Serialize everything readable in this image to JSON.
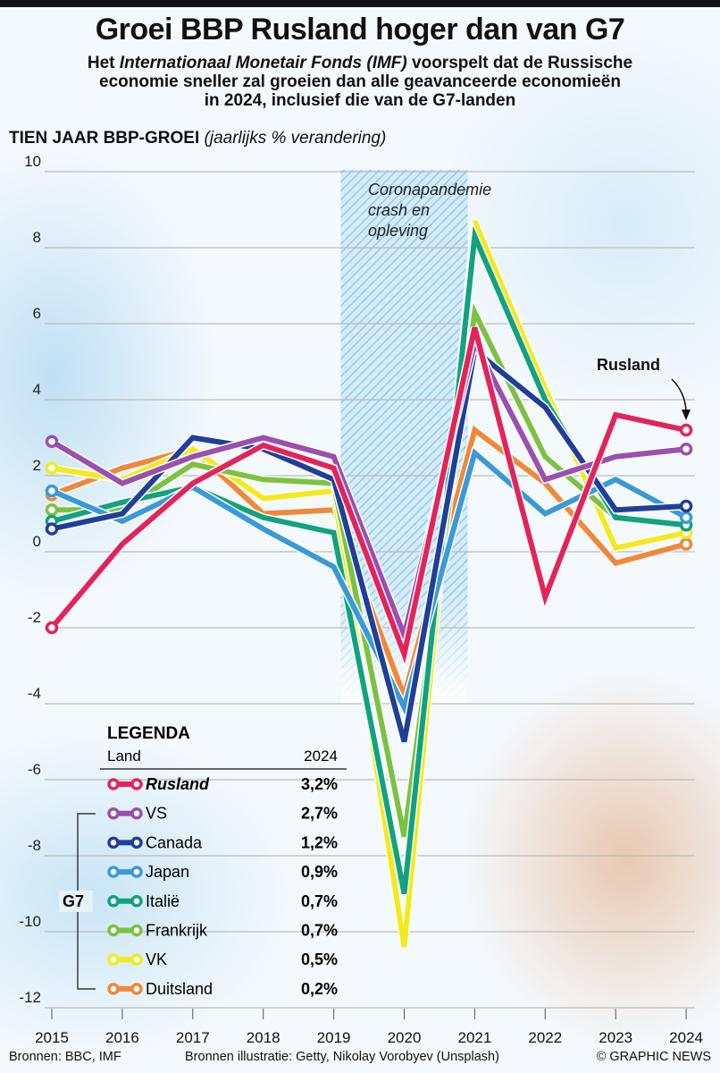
{
  "title": "Groei BBP Rusland hoger dan van G7",
  "subtitle": {
    "pre": "Het ",
    "italic": "Internationaal Monetair Fonds (IMF)",
    "line1_post": " voorspelt dat de Russische",
    "line2": "economie sneller zal groeien dan alle geavanceerde economieën",
    "line3": "in 2024, inclusief die van de G7-landen"
  },
  "chart_heading": {
    "bold": "TIEN JAAR BBP-GROEI",
    "italic": "(jaarlijks % verandering)"
  },
  "chart_data": {
    "type": "line",
    "title": "TIEN JAAR BBP-GROEI (jaarlijks % verandering)",
    "x": [
      2015,
      2016,
      2017,
      2018,
      2019,
      2020,
      2021,
      2022,
      2023,
      2024
    ],
    "x_labels": [
      "2015",
      "2016",
      "2017",
      "2018",
      "2019",
      "2020",
      "2021",
      "2022",
      "2023",
      "2024"
    ],
    "ylim": [
      -12,
      10
    ],
    "y_ticks": [
      "10",
      "8",
      "6",
      "4",
      "2",
      "0",
      "-2",
      "-4",
      "-6",
      "-8",
      "-10",
      "-12"
    ],
    "y_tick_values": [
      10,
      8,
      6,
      4,
      2,
      0,
      -2,
      -4,
      -6,
      -8,
      -10,
      -12
    ],
    "grid": true,
    "annotation": {
      "lines": [
        "Coronapandemie",
        "crash en",
        "opleving"
      ],
      "span": [
        2019.1,
        2020.9
      ]
    },
    "series_label": "Rusland",
    "series": [
      {
        "name": "Duitsland",
        "color": "#f0883a",
        "values": [
          1.5,
          2.2,
          2.7,
          1.0,
          1.1,
          -3.8,
          3.2,
          1.8,
          -0.3,
          0.2
        ],
        "label_2024": "0,2%"
      },
      {
        "name": "VK",
        "color": "#f2ea1f",
        "values": [
          2.2,
          1.9,
          2.7,
          1.4,
          1.6,
          -10.4,
          8.7,
          4.3,
          0.1,
          0.5
        ],
        "label_2024": "0,5%"
      },
      {
        "name": "Frankrijk",
        "color": "#7cc242",
        "values": [
          1.1,
          1.1,
          2.3,
          1.9,
          1.8,
          -7.5,
          6.3,
          2.5,
          0.9,
          0.7
        ],
        "label_2024": "0,7%"
      },
      {
        "name": "Italië",
        "color": "#11a37f",
        "values": [
          0.8,
          1.3,
          1.7,
          0.9,
          0.5,
          -9.0,
          8.3,
          4.0,
          0.9,
          0.7
        ],
        "label_2024": "0,7%"
      },
      {
        "name": "Japan",
        "color": "#3a9ad9",
        "values": [
          1.6,
          0.8,
          1.7,
          0.6,
          -0.4,
          -4.1,
          2.6,
          1.0,
          1.9,
          0.9
        ],
        "label_2024": "0,9%"
      },
      {
        "name": "Canada",
        "color": "#1f3f99",
        "values": [
          0.6,
          1.0,
          3.0,
          2.7,
          1.9,
          -5.0,
          5.3,
          3.8,
          1.1,
          1.2
        ],
        "label_2024": "1,2%"
      },
      {
        "name": "VS",
        "color": "#9b4fb0",
        "values": [
          2.9,
          1.8,
          2.5,
          3.0,
          2.5,
          -2.2,
          5.5,
          1.9,
          2.5,
          2.7
        ],
        "label_2024": "2,7%"
      },
      {
        "name": "Rusland",
        "color": "#e3245a",
        "values": [
          -2.0,
          0.2,
          1.8,
          2.8,
          2.2,
          -2.7,
          5.9,
          -1.2,
          3.6,
          3.2
        ],
        "label_2024": "3,2%"
      }
    ]
  },
  "legend": {
    "title": "LEGENDA",
    "col_land": "Land",
    "col_year": "2024",
    "group": "G7",
    "order": [
      "Rusland",
      "VS",
      "Canada",
      "Japan",
      "Italië",
      "Frankrijk",
      "VK",
      "Duitsland"
    ]
  },
  "footer": {
    "sources": "Bronnen: BBC, IMF",
    "illustration": "Bronnen illustratie: Getty, Nikolay Vorobyev (Unsplash)",
    "credit": "© GRAPHIC NEWS"
  }
}
